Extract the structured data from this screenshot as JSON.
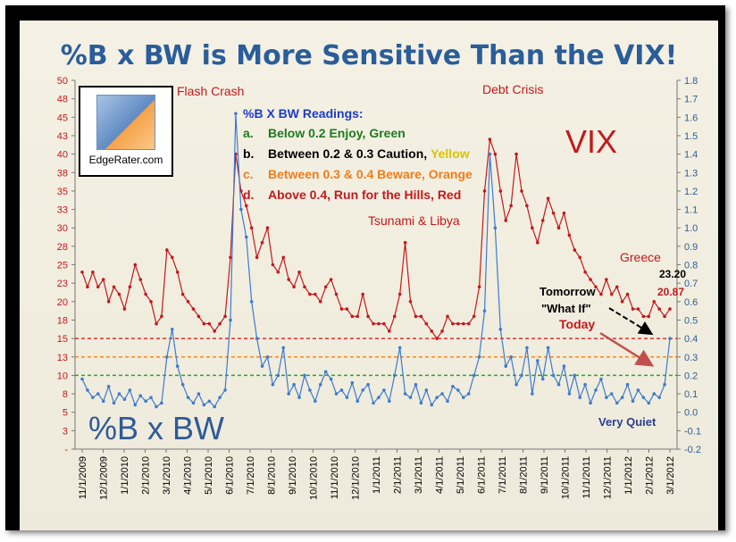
{
  "title": "%B x BW is More Sensitive Than the VIX!",
  "logo": {
    "text": "EdgeRater.com"
  },
  "legend_box": {
    "heading": "%B X BW Readings:",
    "items": [
      {
        "key": "a.",
        "text": "Below 0.2 Enjoy, ",
        "word": "Green",
        "text_color": "#1f7a1f",
        "word_color": "#1f7a1f"
      },
      {
        "key": "b.",
        "text": "Between 0.2 & 0.3 Caution, ",
        "word": "Yellow",
        "text_color": "#000000",
        "word_color": "#d9c300"
      },
      {
        "key": "c.",
        "text": "Between 0.3 & 0.4 Beware, ",
        "word": "Orange",
        "text_color": "#f07d1a",
        "word_color": "#f07d1a"
      },
      {
        "key": "d.",
        "text": "Above 0.4, Run for the Hills, ",
        "word": "Red",
        "text_color": "#c3191b",
        "word_color": "#c3191b"
      }
    ]
  },
  "labels": {
    "vix": "VIX",
    "bbw": "%B x BW",
    "flash_crash": "Flash Crash",
    "debt_crisis": "Debt Crisis",
    "tsunami": "Tsunami & Libya",
    "greece": "Greece",
    "tomorrow": "Tomorrow",
    "what_if": "\"What If\"",
    "today": "Today",
    "very_quiet": "Very Quiet",
    "val_2320": "23.20",
    "val_2087": "20.87"
  },
  "colors": {
    "vix": "#c3191b",
    "bbw": "#3d7bd0",
    "left_axis": "#c3191b",
    "right_axis": "#2a5d9a",
    "line_red": "#d93030",
    "line_orange": "#f08a1d",
    "line_green": "#2aa82a"
  },
  "chart_data": {
    "type": "line",
    "title": "%B x BW is More Sensitive Than the VIX!",
    "x_ticks": [
      "11/1/2009",
      "12/1/2009",
      "1/1/2010",
      "2/1/2010",
      "3/1/2010",
      "4/1/2010",
      "5/1/2010",
      "6/1/2010",
      "7/1/2010",
      "8/1/2010",
      "9/1/2010",
      "10/1/2010",
      "11/1/2010",
      "12/1/2010",
      "1/1/2011",
      "2/1/2011",
      "3/1/2011",
      "4/1/2011",
      "5/1/2011",
      "6/1/2011",
      "7/1/2011",
      "8/1/2011",
      "9/1/2011",
      "10/1/2011",
      "11/1/2011",
      "12/1/2011",
      "1/1/2012",
      "2/1/2012",
      "3/1/2012"
    ],
    "left_axis": {
      "min": 0,
      "max": 50,
      "ticks": [
        "-",
        "3",
        "5",
        "8",
        "10",
        "13",
        "15",
        "18",
        "20",
        "23",
        "25",
        "28",
        "30",
        "33",
        "35",
        "38",
        "40",
        "43",
        "45",
        "48",
        "50"
      ]
    },
    "right_axis": {
      "min": -0.2,
      "max": 1.8,
      "ticks": [
        "-0.2",
        "-0.1",
        "0.0",
        "0.1",
        "0.2",
        "0.3",
        "0.4",
        "0.5",
        "0.6",
        "0.7",
        "0.8",
        "0.9",
        "1.0",
        "1.1",
        "1.2",
        "1.3",
        "1.4",
        "1.5",
        "1.6",
        "1.7",
        "1.8"
      ]
    },
    "threshold_lines": [
      {
        "name": "0.4",
        "value": 0.4,
        "color": "#d93030"
      },
      {
        "name": "0.3",
        "value": 0.3,
        "color": "#f08a1d"
      },
      {
        "name": "0.2",
        "value": 0.2,
        "color": "#2aa82a"
      }
    ],
    "series": [
      {
        "name": "VIX",
        "axis": "left",
        "color": "#c3191b",
        "points": [
          [
            0,
            24
          ],
          [
            1,
            22
          ],
          [
            2,
            24
          ],
          [
            3,
            22
          ],
          [
            4,
            23
          ],
          [
            5,
            20
          ],
          [
            6,
            22
          ],
          [
            7,
            21
          ],
          [
            8,
            19
          ],
          [
            9,
            22
          ],
          [
            10,
            25
          ],
          [
            11,
            23
          ],
          [
            12,
            21
          ],
          [
            13,
            20
          ],
          [
            14,
            17
          ],
          [
            15,
            18
          ],
          [
            16,
            27
          ],
          [
            17,
            26
          ],
          [
            18,
            24
          ],
          [
            19,
            21
          ],
          [
            20,
            20
          ],
          [
            21,
            19
          ],
          [
            22,
            18
          ],
          [
            23,
            17
          ],
          [
            24,
            17
          ],
          [
            25,
            16
          ],
          [
            26,
            17
          ],
          [
            27,
            18
          ],
          [
            28,
            26
          ],
          [
            29,
            40
          ],
          [
            30,
            35
          ],
          [
            31,
            33
          ],
          [
            32,
            30
          ],
          [
            33,
            26
          ],
          [
            34,
            28
          ],
          [
            35,
            30
          ],
          [
            36,
            25
          ],
          [
            37,
            24
          ],
          [
            38,
            26
          ],
          [
            39,
            23
          ],
          [
            40,
            22
          ],
          [
            41,
            24
          ],
          [
            42,
            22
          ],
          [
            43,
            21
          ],
          [
            44,
            21
          ],
          [
            45,
            20
          ],
          [
            46,
            22
          ],
          [
            47,
            23
          ],
          [
            48,
            21
          ],
          [
            49,
            19
          ],
          [
            50,
            19
          ],
          [
            51,
            18
          ],
          [
            52,
            18
          ],
          [
            53,
            21
          ],
          [
            54,
            18
          ],
          [
            55,
            17
          ],
          [
            56,
            17
          ],
          [
            57,
            17
          ],
          [
            58,
            16
          ],
          [
            59,
            18
          ],
          [
            60,
            21
          ],
          [
            61,
            28
          ],
          [
            62,
            20
          ],
          [
            63,
            18
          ],
          [
            64,
            18
          ],
          [
            65,
            17
          ],
          [
            66,
            16
          ],
          [
            67,
            15
          ],
          [
            68,
            16
          ],
          [
            69,
            18
          ],
          [
            70,
            17
          ],
          [
            71,
            17
          ],
          [
            72,
            17
          ],
          [
            73,
            17
          ],
          [
            74,
            18
          ],
          [
            75,
            22
          ],
          [
            76,
            35
          ],
          [
            77,
            42
          ],
          [
            78,
            40
          ],
          [
            79,
            35
          ],
          [
            80,
            31
          ],
          [
            81,
            33
          ],
          [
            82,
            40
          ],
          [
            83,
            35
          ],
          [
            84,
            33
          ],
          [
            85,
            30
          ],
          [
            86,
            28
          ],
          [
            87,
            31
          ],
          [
            88,
            34
          ],
          [
            89,
            32
          ],
          [
            90,
            30
          ],
          [
            91,
            32
          ],
          [
            92,
            29
          ],
          [
            93,
            27
          ],
          [
            94,
            26
          ],
          [
            95,
            24
          ],
          [
            96,
            23
          ],
          [
            97,
            22
          ],
          [
            98,
            21
          ],
          [
            99,
            23
          ],
          [
            100,
            21
          ],
          [
            101,
            22
          ],
          [
            102,
            20
          ],
          [
            103,
            21
          ],
          [
            104,
            19
          ],
          [
            105,
            19
          ],
          [
            106,
            18
          ],
          [
            107,
            18
          ],
          [
            108,
            20
          ],
          [
            109,
            19
          ],
          [
            110,
            18
          ],
          [
            111,
            19
          ]
        ]
      },
      {
        "name": "%B x BW",
        "axis": "right",
        "color": "#3d7bd0",
        "points": [
          [
            0,
            0.18
          ],
          [
            1,
            0.12
          ],
          [
            2,
            0.08
          ],
          [
            3,
            0.1
          ],
          [
            4,
            0.06
          ],
          [
            5,
            0.14
          ],
          [
            6,
            0.05
          ],
          [
            7,
            0.1
          ],
          [
            8,
            0.07
          ],
          [
            9,
            0.12
          ],
          [
            10,
            0.04
          ],
          [
            11,
            0.09
          ],
          [
            12,
            0.06
          ],
          [
            13,
            0.08
          ],
          [
            14,
            0.03
          ],
          [
            15,
            0.05
          ],
          [
            16,
            0.3
          ],
          [
            17,
            0.45
          ],
          [
            18,
            0.25
          ],
          [
            19,
            0.15
          ],
          [
            20,
            0.08
          ],
          [
            21,
            0.05
          ],
          [
            22,
            0.1
          ],
          [
            23,
            0.04
          ],
          [
            24,
            0.06
          ],
          [
            25,
            0.03
          ],
          [
            26,
            0.08
          ],
          [
            27,
            0.12
          ],
          [
            28,
            0.5
          ],
          [
            29,
            1.62
          ],
          [
            30,
            1.1
          ],
          [
            31,
            0.95
          ],
          [
            32,
            0.6
          ],
          [
            33,
            0.4
          ],
          [
            34,
            0.25
          ],
          [
            35,
            0.3
          ],
          [
            36,
            0.15
          ],
          [
            37,
            0.2
          ],
          [
            38,
            0.35
          ],
          [
            39,
            0.1
          ],
          [
            40,
            0.15
          ],
          [
            41,
            0.08
          ],
          [
            42,
            0.2
          ],
          [
            43,
            0.12
          ],
          [
            44,
            0.06
          ],
          [
            45,
            0.15
          ],
          [
            46,
            0.22
          ],
          [
            47,
            0.18
          ],
          [
            48,
            0.1
          ],
          [
            49,
            0.12
          ],
          [
            50,
            0.08
          ],
          [
            51,
            0.16
          ],
          [
            52,
            0.06
          ],
          [
            53,
            0.12
          ],
          [
            54,
            0.15
          ],
          [
            55,
            0.05
          ],
          [
            56,
            0.08
          ],
          [
            57,
            0.12
          ],
          [
            58,
            0.06
          ],
          [
            59,
            0.2
          ],
          [
            60,
            0.35
          ],
          [
            61,
            0.1
          ],
          [
            62,
            0.08
          ],
          [
            63,
            0.15
          ],
          [
            64,
            0.05
          ],
          [
            65,
            0.12
          ],
          [
            66,
            0.04
          ],
          [
            67,
            0.08
          ],
          [
            68,
            0.1
          ],
          [
            69,
            0.06
          ],
          [
            70,
            0.14
          ],
          [
            71,
            0.12
          ],
          [
            72,
            0.08
          ],
          [
            73,
            0.1
          ],
          [
            74,
            0.2
          ],
          [
            75,
            0.3
          ],
          [
            76,
            0.55
          ],
          [
            77,
            1.4
          ],
          [
            78,
            1.0
          ],
          [
            79,
            0.45
          ],
          [
            80,
            0.25
          ],
          [
            81,
            0.3
          ],
          [
            82,
            0.15
          ],
          [
            83,
            0.2
          ],
          [
            84,
            0.35
          ],
          [
            85,
            0.1
          ],
          [
            86,
            0.28
          ],
          [
            87,
            0.18
          ],
          [
            88,
            0.35
          ],
          [
            89,
            0.2
          ],
          [
            90,
            0.15
          ],
          [
            91,
            0.25
          ],
          [
            92,
            0.1
          ],
          [
            93,
            0.2
          ],
          [
            94,
            0.08
          ],
          [
            95,
            0.15
          ],
          [
            96,
            0.05
          ],
          [
            97,
            0.12
          ],
          [
            98,
            0.18
          ],
          [
            99,
            0.08
          ],
          [
            100,
            0.1
          ],
          [
            101,
            0.05
          ],
          [
            102,
            0.08
          ],
          [
            103,
            0.15
          ],
          [
            104,
            0.06
          ],
          [
            105,
            0.12
          ],
          [
            106,
            0.08
          ],
          [
            107,
            0.05
          ],
          [
            108,
            0.1
          ],
          [
            109,
            0.08
          ],
          [
            110,
            0.15
          ],
          [
            111,
            0.4
          ]
        ]
      }
    ]
  }
}
